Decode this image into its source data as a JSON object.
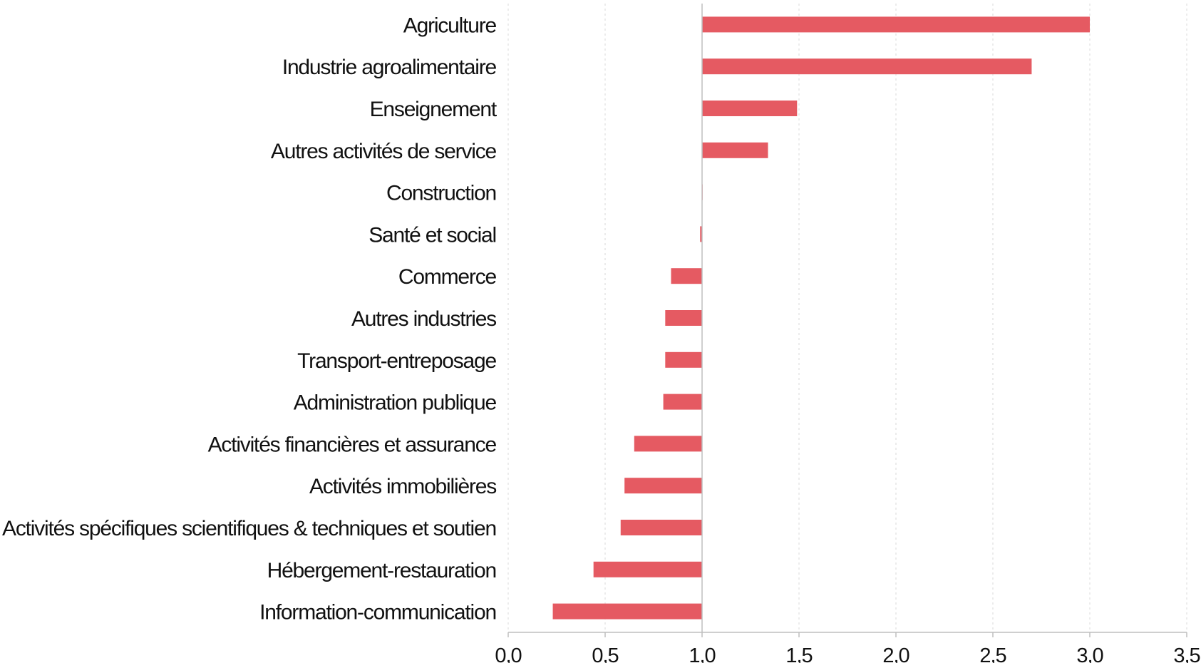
{
  "chart_data": {
    "type": "bar",
    "orientation": "horizontal",
    "baseline": 1.0,
    "categories": [
      "Agriculture",
      "Industrie agroalimentaire",
      "Enseignement",
      "Autres activités de service",
      "Construction",
      "Santé et social",
      "Commerce",
      "Autres industries",
      "Transport-entreposage",
      "Administration publique",
      "Activités financières et assurance",
      "Activités immobilières",
      "Activités spécifiques scientifiques & techniques et soutien",
      "Hébergement-restauration",
      "Information-communication"
    ],
    "values": [
      3.0,
      2.7,
      1.49,
      1.34,
      1.0,
      0.99,
      0.84,
      0.81,
      0.81,
      0.8,
      0.65,
      0.6,
      0.58,
      0.44,
      0.23
    ],
    "xlim": [
      0,
      3.5
    ],
    "xticks": [
      0,
      0.5,
      1.0,
      1.5,
      2.0,
      2.5,
      3.0,
      3.5
    ],
    "xtick_labels": [
      "0,0",
      "0,5",
      "1,0",
      "1,5",
      "2,0",
      "2,5",
      "3,0",
      "3,5"
    ],
    "bar_color": "#e55a62",
    "grid": true,
    "title": "",
    "xlabel": "",
    "ylabel": ""
  }
}
